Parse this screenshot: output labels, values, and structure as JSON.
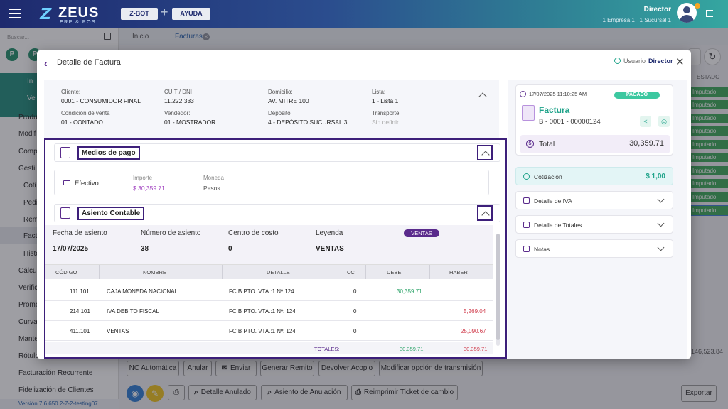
{
  "header": {
    "logo_name": "ZEUS",
    "logo_sub": "ERP & POS",
    "zbot_label": "Z-BOT",
    "ayuda_label": "AYUDA",
    "user_name": "Director",
    "empresa": "1 Empresa 1",
    "sucursal": "1 Sucursal 1"
  },
  "sidebar": {
    "search_placeholder": "Buscar...",
    "circles": [
      "P",
      "P"
    ],
    "items": [
      "In",
      "Ve",
      "Produ",
      "Modif",
      "Comp",
      "Gesti",
      "Coti",
      "Pedi",
      "Rem",
      "Fact",
      "Histo",
      "Cálcu",
      "Verific",
      "Promo",
      "Curva",
      "Mante",
      "Rótulo",
      "Facturación Recurrente",
      "Fidelización de Clientes"
    ],
    "version": "Versión 7.6.650.2-7-2-testing07"
  },
  "tabs": {
    "inicio": "Inicio",
    "facturas": "Facturas"
  },
  "background": {
    "estado_col": "ESTADO",
    "badge_label": "Imputado",
    "partial_number": "146,523.84"
  },
  "actions": {
    "nc_automatica": "NC Automática",
    "anular": "Anular",
    "enviar": "Enviar",
    "generar_remito": "Generar Remito",
    "devolver_acopio": "Devolver Acopio",
    "modificar_transmision": "Modificar opción de transmisión",
    "detalle_anulado": "Detalle Anulado",
    "asiento_anulacion": "Asiento de Anulación",
    "reimprimir_ticket": "Reimprimir Ticket de cambio",
    "exportar": "Exportar"
  },
  "modal": {
    "title": "Detalle de Factura",
    "user_label": "Usuario",
    "user_value": "Director",
    "info": {
      "cliente_label": "Cliente:",
      "cliente_value": "0001 - CONSUMIDOR FINAL",
      "cuit_label": "CUIT / DNI",
      "cuit_value": "11.222.333",
      "domicilio_label": "Domicilio:",
      "domicilio_value": "AV. MITRE 100",
      "lista_label": "Lista:",
      "lista_value": "1 - Lista 1",
      "condicion_label": "Condición de venta",
      "condicion_value": "01 - CONTADO",
      "vendedor_label": "Vendedor:",
      "vendedor_value": "01 - MOSTRADOR",
      "deposito_label": "Depósito",
      "deposito_value": "4 - DEPÓSITO SUCURSAL 3",
      "transporte_label": "Transporte:",
      "transporte_value": "Sin definir"
    },
    "medios_pago": {
      "title": "Medios de pago",
      "method": "Efectivo",
      "importe_label": "Importe",
      "importe_value": "$ 30,359.71",
      "moneda_label": "Moneda",
      "moneda_value": "Pesos"
    },
    "asiento": {
      "title": "Asiento Contable",
      "fecha_label": "Fecha de asiento",
      "fecha_value": "17/07/2025",
      "numero_label": "Número de asiento",
      "numero_value": "38",
      "centro_label": "Centro de costo",
      "centro_value": "0",
      "leyenda_label": "Leyenda",
      "leyenda_value": "VENTAS",
      "badge": "VENTAS",
      "columns": [
        "CÓDIGO",
        "NOMBRE",
        "DETALLE",
        "CC",
        "DEBE",
        "HABER"
      ],
      "rows": [
        {
          "codigo": "111.101",
          "nombre": "CAJA MONEDA NACIONAL",
          "detalle": "FC B PTO. VTA.:1 Nº 124",
          "cc": "0",
          "debe": "30,359.71",
          "haber": ""
        },
        {
          "codigo": "214.101",
          "nombre": "IVA DEBITO FISCAL",
          "detalle": "FC B PTO. VTA.:1 Nº: 124",
          "cc": "0",
          "debe": "",
          "haber": "5,269.04"
        },
        {
          "codigo": "411.101",
          "nombre": "VENTAS",
          "detalle": "FC B PTO. VTA.:1 Nº: 124",
          "cc": "0",
          "debe": "",
          "haber": "25,090.67"
        }
      ],
      "totales_label": "TOTALES:",
      "total_debe": "30,359.71",
      "total_haber": "30,359.71"
    },
    "invoice": {
      "datetime": "17/07/2025 11:10:25 AM",
      "status": "PAGADO",
      "type": "Factura",
      "number": "B - 0001 - 00000124",
      "total_label": "Total",
      "total_value": "30,359.71"
    },
    "panels": {
      "cotizacion_label": "Cotización",
      "cotizacion_value": "$ 1,00",
      "iva_label": "Detalle de IVA",
      "totales_label": "Detalle de Totales",
      "notas_label": "Notas"
    }
  }
}
